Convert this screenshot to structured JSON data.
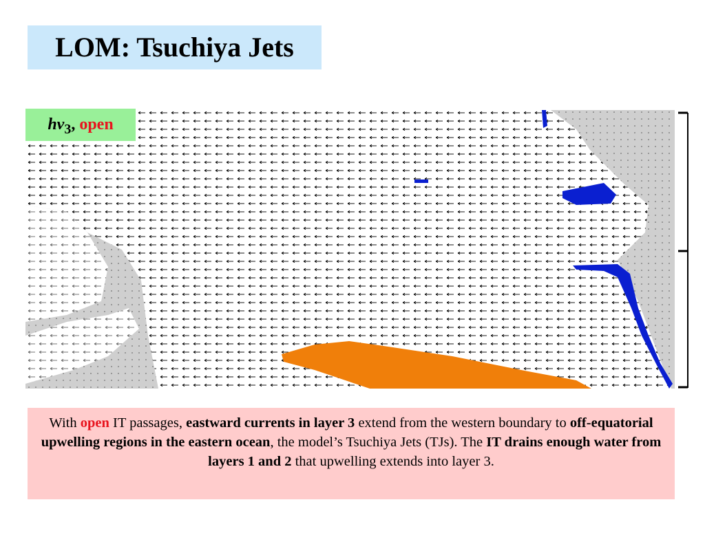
{
  "header": {
    "title": "LOM: Tsuchiya Jets"
  },
  "figure": {
    "label": {
      "symbol": "hv",
      "subscript": "3",
      "separator": ",",
      "case": "open"
    }
  },
  "caption": {
    "segments": [
      "With ",
      "open",
      " IT passages, ",
      "eastward currents in layer 3",
      " extend from the western boundary to ",
      "off-equatorial upwelling regions in the eastern ocean",
      ", the model’s Tsuchiya Jets (TJs).  The ",
      "IT drains enough water from layers 1 and 2",
      " that upwelling extends into layer 3."
    ]
  }
}
